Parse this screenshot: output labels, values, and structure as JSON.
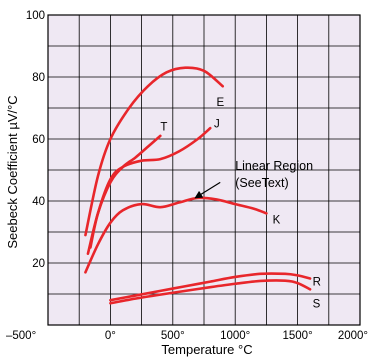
{
  "chart_data": {
    "type": "line",
    "xlabel": "Temperature °C",
    "ylabel": "Seebeck Coefficient µV/°C",
    "xlim": [
      -500,
      2000
    ],
    "ylim": [
      0,
      100
    ],
    "grid": true,
    "x_ticks": [
      {
        "value": -500,
        "label": "–500°"
      },
      {
        "value": 0,
        "label": "0°"
      },
      {
        "value": 500,
        "label": "500°"
      },
      {
        "value": 1000,
        "label": "1000°"
      },
      {
        "value": 1500,
        "label": "1500°"
      },
      {
        "value": 2000,
        "label": "2000°"
      }
    ],
    "y_ticks": [
      {
        "value": 20,
        "label": "20"
      },
      {
        "value": 40,
        "label": "40"
      },
      {
        "value": 60,
        "label": "60"
      },
      {
        "value": 80,
        "label": "80"
      },
      {
        "value": 100,
        "label": "100"
      }
    ],
    "line_color": "#e8262b",
    "grid_color": "#000000",
    "plot_background": "#efe8f3",
    "series": [
      {
        "name": "E",
        "points": [
          [
            -200,
            29
          ],
          [
            -100,
            48
          ],
          [
            0,
            60
          ],
          [
            150,
            70
          ],
          [
            300,
            77
          ],
          [
            450,
            81.5
          ],
          [
            600,
            83
          ],
          [
            750,
            82
          ],
          [
            900,
            77
          ]
        ],
        "label_at": [
          850,
          72
        ]
      },
      {
        "name": "T",
        "points": [
          [
            -180,
            23
          ],
          [
            -100,
            36
          ],
          [
            0,
            46
          ],
          [
            100,
            51
          ],
          [
            200,
            54
          ],
          [
            300,
            57.5
          ],
          [
            400,
            61
          ]
        ],
        "label_at": [
          400,
          64
        ]
      },
      {
        "name": "J",
        "points": [
          [
            -160,
            25
          ],
          [
            -100,
            36
          ],
          [
            0,
            47
          ],
          [
            100,
            51
          ],
          [
            250,
            53
          ],
          [
            400,
            53.5
          ],
          [
            550,
            56
          ],
          [
            700,
            60
          ],
          [
            800,
            63.5
          ]
        ],
        "label_at": [
          830,
          65
        ]
      },
      {
        "name": "K",
        "points": [
          [
            -200,
            17
          ],
          [
            -100,
            26
          ],
          [
            0,
            33
          ],
          [
            100,
            37
          ],
          [
            250,
            39
          ],
          [
            400,
            38
          ],
          [
            550,
            39.5
          ],
          [
            700,
            41
          ],
          [
            850,
            40.5
          ],
          [
            1000,
            39
          ],
          [
            1150,
            37.5
          ],
          [
            1250,
            36
          ]
        ],
        "label_at": [
          1300,
          34
        ]
      },
      {
        "name": "R",
        "points": [
          [
            0,
            8
          ],
          [
            200,
            9.5
          ],
          [
            400,
            11
          ],
          [
            600,
            12.5
          ],
          [
            800,
            14
          ],
          [
            1000,
            15.5
          ],
          [
            1200,
            16.5
          ],
          [
            1400,
            16.5
          ],
          [
            1500,
            16
          ],
          [
            1600,
            15
          ]
        ],
        "label_at": [
          1620,
          14
        ]
      },
      {
        "name": "S",
        "points": [
          [
            0,
            7
          ],
          [
            200,
            8.5
          ],
          [
            400,
            9.8
          ],
          [
            600,
            11
          ],
          [
            800,
            12.2
          ],
          [
            1000,
            13.3
          ],
          [
            1200,
            14.2
          ],
          [
            1400,
            14.3
          ],
          [
            1500,
            13.5
          ],
          [
            1600,
            11.5
          ]
        ],
        "label_at": [
          1620,
          7
        ]
      }
    ],
    "annotations": [
      {
        "text_lines": [
          "Linear Region",
          "(SeeText)"
        ],
        "text_at": [
          1000,
          50
        ],
        "arrow_from": [
          880,
          46
        ],
        "arrow_to": [
          680,
          41
        ]
      }
    ]
  }
}
